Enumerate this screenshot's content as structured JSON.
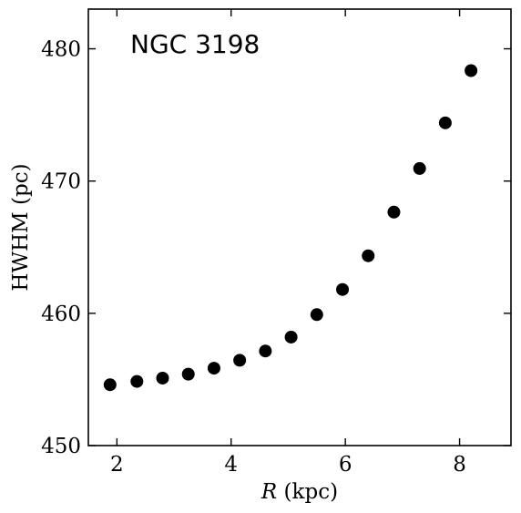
{
  "chart_data": {
    "type": "scatter",
    "annotation": "NGC 3198",
    "xlabel": {
      "italic": "R",
      "normal": " (kpc)"
    },
    "ylabel": "HWHM (pc)",
    "xlim": [
      1.5,
      8.9
    ],
    "ylim": [
      450,
      483
    ],
    "x_ticks": [
      2,
      4,
      6,
      8
    ],
    "y_ticks": [
      450,
      460,
      470,
      480
    ],
    "x_tick_labels": [
      "2",
      "4",
      "6",
      "8"
    ],
    "y_tick_labels": [
      "450",
      "460",
      "470",
      "480"
    ],
    "grid": false,
    "marker_color": "#000000",
    "points": [
      {
        "x": 1.88,
        "y": 454.6
      },
      {
        "x": 2.35,
        "y": 454.85
      },
      {
        "x": 2.8,
        "y": 455.1
      },
      {
        "x": 3.25,
        "y": 455.4
      },
      {
        "x": 3.7,
        "y": 455.85
      },
      {
        "x": 4.15,
        "y": 456.45
      },
      {
        "x": 4.6,
        "y": 457.15
      },
      {
        "x": 5.05,
        "y": 458.2
      },
      {
        "x": 5.5,
        "y": 459.9
      },
      {
        "x": 5.95,
        "y": 461.8
      },
      {
        "x": 6.4,
        "y": 464.35
      },
      {
        "x": 6.85,
        "y": 467.65
      },
      {
        "x": 7.3,
        "y": 470.95
      },
      {
        "x": 7.75,
        "y": 474.4
      },
      {
        "x": 8.2,
        "y": 478.35
      }
    ]
  }
}
